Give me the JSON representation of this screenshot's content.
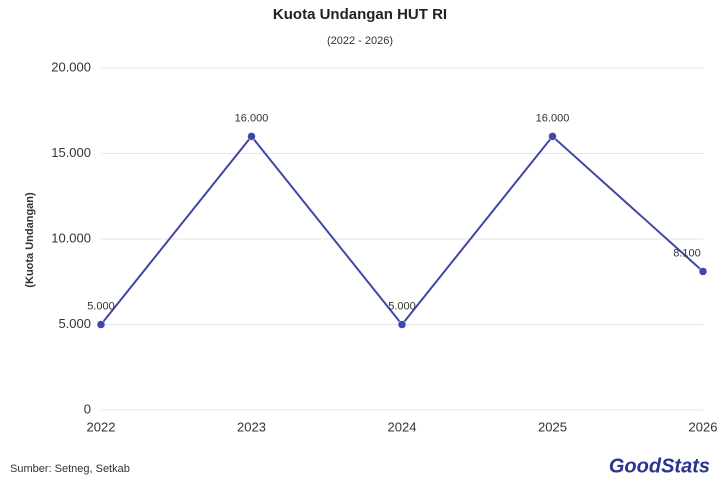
{
  "chart_data": {
    "type": "line",
    "title": "Kuota Undangan HUT RI",
    "subtitle": "(2022 - 2026)",
    "y_label": "(Kuota Undangan)",
    "source": "Sumber: Setneg, Setkab",
    "logo": "GoodStats",
    "categories": [
      "2022",
      "2023",
      "2024",
      "2025",
      "2026"
    ],
    "series": [
      {
        "name": "Kuota Undangan",
        "color": "#3f48a8",
        "values": [
          5000,
          16000,
          5000,
          16000,
          8100
        ],
        "value_labels": [
          "5.000",
          "16.000",
          "5.000",
          "16.000",
          "8.100"
        ]
      }
    ],
    "ylim": [
      0,
      20000
    ],
    "yticks": [
      0,
      {
        "value": 5000,
        "label": "5.000"
      },
      {
        "value": 10000,
        "label": "10.000"
      },
      {
        "value": 15000,
        "label": "15.000"
      },
      {
        "value": 20000,
        "label": "20.000"
      }
    ],
    "grid": true
  }
}
